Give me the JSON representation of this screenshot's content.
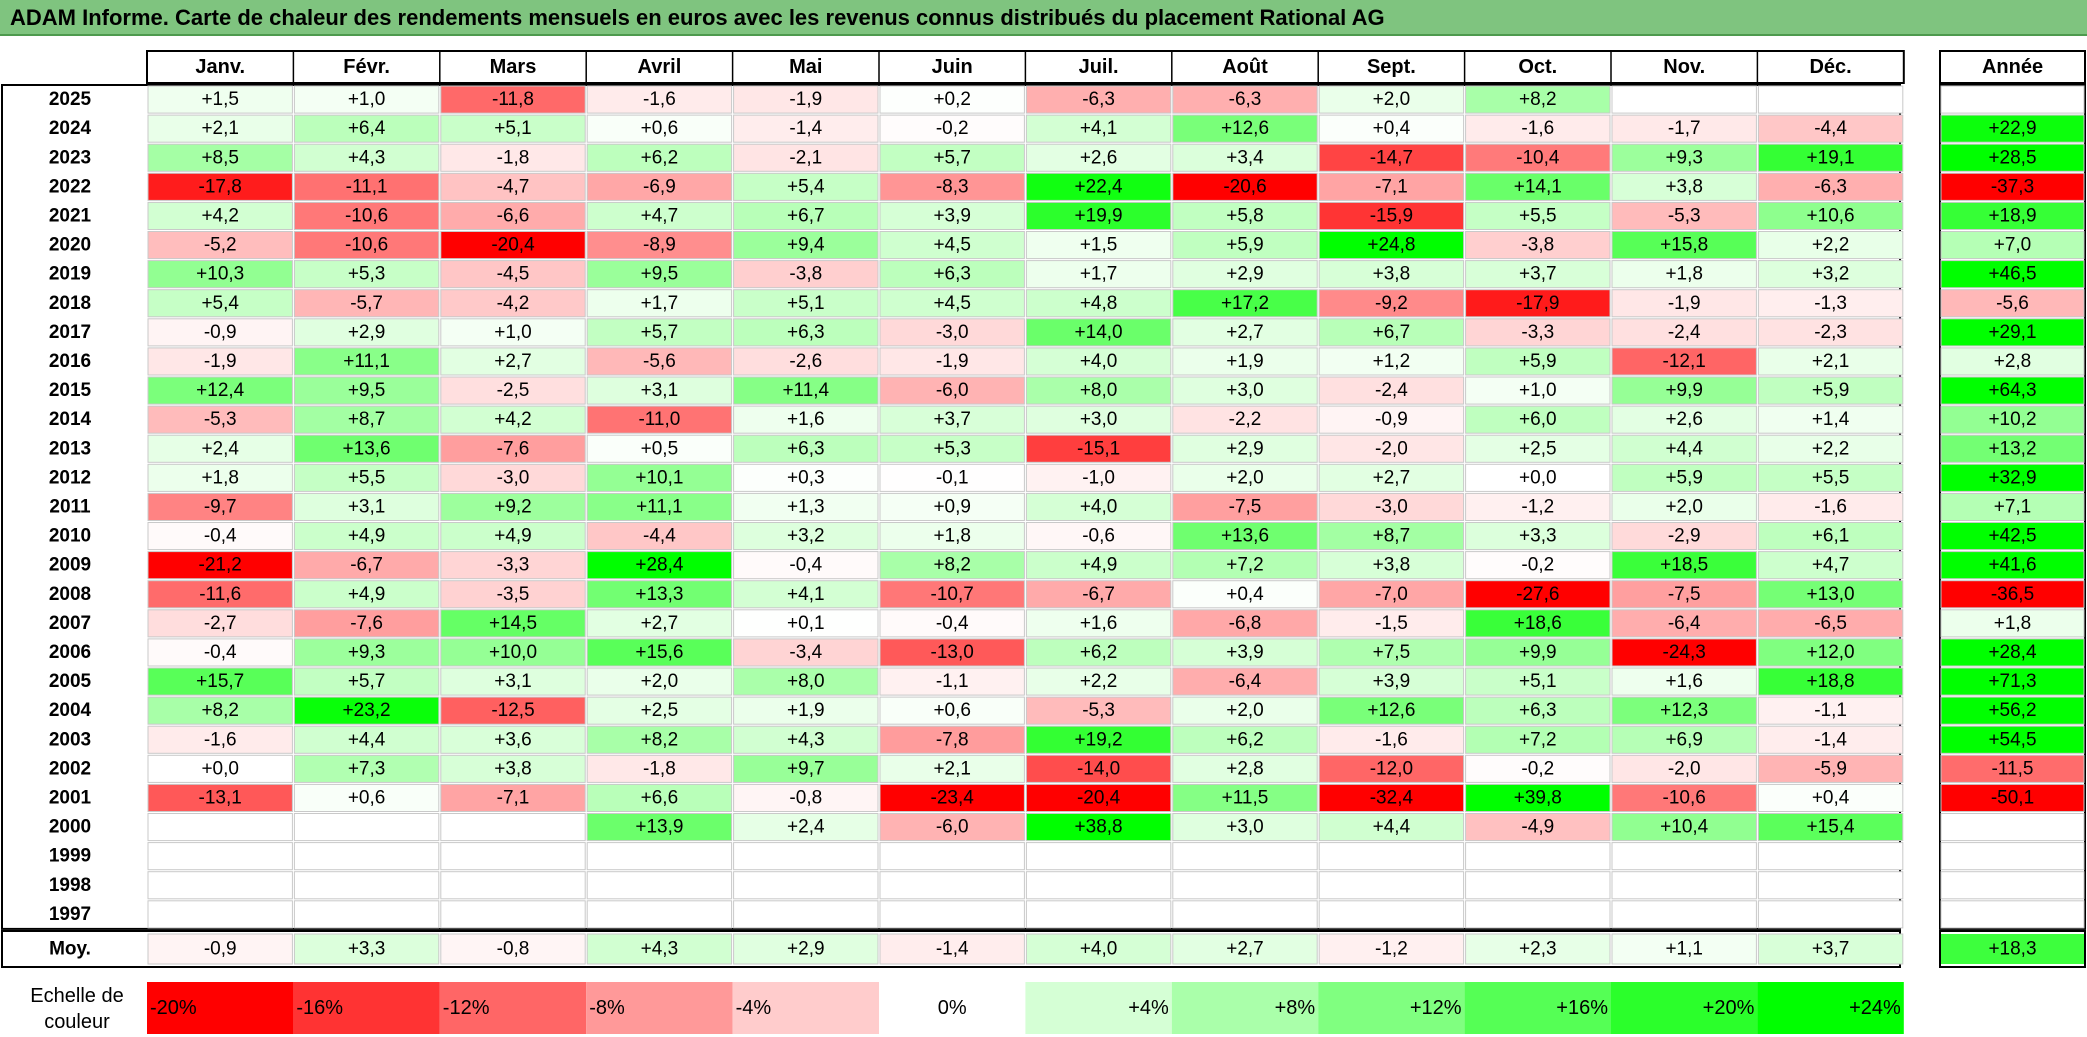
{
  "title": "ADAM Informe. Carte de chaleur des rendements mensuels en euros avec les revenus connus distribués du placement Rational AG",
  "months": [
    "Janv.",
    "Févr.",
    "Mars",
    "Avril",
    "Mai",
    "Juin",
    "Juil.",
    "Août",
    "Sept.",
    "Oct.",
    "Nov.",
    "Déc."
  ],
  "year_header": "Année",
  "average_label": "Moy.",
  "scale_label": [
    "Echelle de",
    "couleur"
  ],
  "colors": {
    "title_bar": "#7fc47f",
    "negative_max": "#ff0000",
    "positive_max": "#00ff00",
    "neutral": "#ffffff"
  },
  "chart_data": {
    "type": "heatmap",
    "unit": "%",
    "rows": [
      {
        "year": "2025",
        "values": [
          "+1,5",
          "+1,0",
          "-11,8",
          "-1,6",
          "-1,9",
          "+0,2",
          "-6,3",
          "-6,3",
          "+2,0",
          "+8,2",
          "",
          ""
        ],
        "annual": ""
      },
      {
        "year": "2024",
        "values": [
          "+2,1",
          "+6,4",
          "+5,1",
          "+0,6",
          "-1,4",
          "-0,2",
          "+4,1",
          "+12,6",
          "+0,4",
          "-1,6",
          "-1,7",
          "-4,4"
        ],
        "annual": "+22,9"
      },
      {
        "year": "2023",
        "values": [
          "+8,5",
          "+4,3",
          "-1,8",
          "+6,2",
          "-2,1",
          "+5,7",
          "+2,6",
          "+3,4",
          "-14,7",
          "-10,4",
          "+9,3",
          "+19,1"
        ],
        "annual": "+28,5"
      },
      {
        "year": "2022",
        "values": [
          "-17,8",
          "-11,1",
          "-4,7",
          "-6,9",
          "+5,4",
          "-8,3",
          "+22,4",
          "-20,6",
          "-7,1",
          "+14,1",
          "+3,8",
          "-6,3"
        ],
        "annual": "-37,3"
      },
      {
        "year": "2021",
        "values": [
          "+4,2",
          "-10,6",
          "-6,6",
          "+4,7",
          "+6,7",
          "+3,9",
          "+19,9",
          "+5,8",
          "-15,9",
          "+5,5",
          "-5,3",
          "+10,6"
        ],
        "annual": "+18,9"
      },
      {
        "year": "2020",
        "values": [
          "-5,2",
          "-10,6",
          "-20,4",
          "-8,9",
          "+9,4",
          "+4,5",
          "+1,5",
          "+5,9",
          "+24,8",
          "-3,8",
          "+15,8",
          "+2,2"
        ],
        "annual": "+7,0"
      },
      {
        "year": "2019",
        "values": [
          "+10,3",
          "+5,3",
          "-4,5",
          "+9,5",
          "-3,8",
          "+6,3",
          "+1,7",
          "+2,9",
          "+3,8",
          "+3,7",
          "+1,8",
          "+3,2"
        ],
        "annual": "+46,5"
      },
      {
        "year": "2018",
        "values": [
          "+5,4",
          "-5,7",
          "-4,2",
          "+1,7",
          "+5,1",
          "+4,5",
          "+4,8",
          "+17,2",
          "-9,2",
          "-17,9",
          "-1,9",
          "-1,3"
        ],
        "annual": "-5,6"
      },
      {
        "year": "2017",
        "values": [
          "-0,9",
          "+2,9",
          "+1,0",
          "+5,7",
          "+6,3",
          "-3,0",
          "+14,0",
          "+2,7",
          "+6,7",
          "-3,3",
          "-2,4",
          "-2,3"
        ],
        "annual": "+29,1"
      },
      {
        "year": "2016",
        "values": [
          "-1,9",
          "+11,1",
          "+2,7",
          "-5,6",
          "-2,6",
          "-1,9",
          "+4,0",
          "+1,9",
          "+1,2",
          "+5,9",
          "-12,1",
          "+2,1"
        ],
        "annual": "+2,8"
      },
      {
        "year": "2015",
        "values": [
          "+12,4",
          "+9,5",
          "-2,5",
          "+3,1",
          "+11,4",
          "-6,0",
          "+8,0",
          "+3,0",
          "-2,4",
          "+1,0",
          "+9,9",
          "+5,9"
        ],
        "annual": "+64,3"
      },
      {
        "year": "2014",
        "values": [
          "-5,3",
          "+8,7",
          "+4,2",
          "-11,0",
          "+1,6",
          "+3,7",
          "+3,0",
          "-2,2",
          "-0,9",
          "+6,0",
          "+2,6",
          "+1,4"
        ],
        "annual": "+10,2"
      },
      {
        "year": "2013",
        "values": [
          "+2,4",
          "+13,6",
          "-7,6",
          "+0,5",
          "+6,3",
          "+5,3",
          "-15,1",
          "+2,9",
          "-2,0",
          "+2,5",
          "+4,4",
          "+2,2"
        ],
        "annual": "+13,2"
      },
      {
        "year": "2012",
        "values": [
          "+1,8",
          "+5,5",
          "-3,0",
          "+10,1",
          "+0,3",
          "-0,1",
          "-1,0",
          "+2,0",
          "+2,7",
          "+0,0",
          "+5,9",
          "+5,5"
        ],
        "annual": "+32,9"
      },
      {
        "year": "2011",
        "values": [
          "-9,7",
          "+3,1",
          "+9,2",
          "+11,1",
          "+1,3",
          "+0,9",
          "+4,0",
          "-7,5",
          "-3,0",
          "-1,2",
          "+2,0",
          "-1,6"
        ],
        "annual": "+7,1"
      },
      {
        "year": "2010",
        "values": [
          "-0,4",
          "+4,9",
          "+4,9",
          "-4,4",
          "+3,2",
          "+1,8",
          "-0,6",
          "+13,6",
          "+8,7",
          "+3,3",
          "-2,9",
          "+6,1"
        ],
        "annual": "+42,5"
      },
      {
        "year": "2009",
        "values": [
          "-21,2",
          "-6,7",
          "-3,3",
          "+28,4",
          "-0,4",
          "+8,2",
          "+4,9",
          "+7,2",
          "+3,8",
          "-0,2",
          "+18,5",
          "+4,7"
        ],
        "annual": "+41,6"
      },
      {
        "year": "2008",
        "values": [
          "-11,6",
          "+4,9",
          "-3,5",
          "+13,3",
          "+4,1",
          "-10,7",
          "-6,7",
          "+0,4",
          "-7,0",
          "-27,6",
          "-7,5",
          "+13,0"
        ],
        "annual": "-36,5"
      },
      {
        "year": "2007",
        "values": [
          "-2,7",
          "-7,6",
          "+14,5",
          "+2,7",
          "+0,1",
          "-0,4",
          "+1,6",
          "-6,8",
          "-1,5",
          "+18,6",
          "-6,4",
          "-6,5"
        ],
        "annual": "+1,8"
      },
      {
        "year": "2006",
        "values": [
          "-0,4",
          "+9,3",
          "+10,0",
          "+15,6",
          "-3,4",
          "-13,0",
          "+6,2",
          "+3,9",
          "+7,5",
          "+9,9",
          "-24,3",
          "+12,0"
        ],
        "annual": "+28,4"
      },
      {
        "year": "2005",
        "values": [
          "+15,7",
          "+5,7",
          "+3,1",
          "+2,0",
          "+8,0",
          "-1,1",
          "+2,2",
          "-6,4",
          "+3,9",
          "+5,1",
          "+1,6",
          "+18,8"
        ],
        "annual": "+71,3"
      },
      {
        "year": "2004",
        "values": [
          "+8,2",
          "+23,2",
          "-12,5",
          "+2,5",
          "+1,9",
          "+0,6",
          "-5,3",
          "+2,0",
          "+12,6",
          "+6,3",
          "+12,3",
          "-1,1"
        ],
        "annual": "+56,2"
      },
      {
        "year": "2003",
        "values": [
          "-1,6",
          "+4,4",
          "+3,6",
          "+8,2",
          "+4,3",
          "-7,8",
          "+19,2",
          "+6,2",
          "-1,6",
          "+7,2",
          "+6,9",
          "-1,4"
        ],
        "annual": "+54,5"
      },
      {
        "year": "2002",
        "values": [
          "+0,0",
          "+7,3",
          "+3,8",
          "-1,8",
          "+9,7",
          "+2,1",
          "-14,0",
          "+2,8",
          "-12,0",
          "-0,2",
          "-2,0",
          "-5,9"
        ],
        "annual": "-11,5"
      },
      {
        "year": "2001",
        "values": [
          "-13,1",
          "+0,6",
          "-7,1",
          "+6,6",
          "-0,8",
          "-23,4",
          "-20,4",
          "+11,5",
          "-32,4",
          "+39,8",
          "-10,6",
          "+0,4"
        ],
        "annual": "-50,1"
      },
      {
        "year": "2000",
        "values": [
          "",
          "",
          "",
          "+13,9",
          "+2,4",
          "-6,0",
          "+38,8",
          "+3,0",
          "+4,4",
          "-4,9",
          "+10,4",
          "+15,4"
        ],
        "annual": ""
      },
      {
        "year": "1999",
        "values": [
          "",
          "",
          "",
          "",
          "",
          "",
          "",
          "",
          "",
          "",
          "",
          ""
        ],
        "annual": ""
      },
      {
        "year": "1998",
        "values": [
          "",
          "",
          "",
          "",
          "",
          "",
          "",
          "",
          "",
          "",
          "",
          ""
        ],
        "annual": ""
      },
      {
        "year": "1997",
        "values": [
          "",
          "",
          "",
          "",
          "",
          "",
          "",
          "",
          "",
          "",
          "",
          ""
        ],
        "annual": ""
      }
    ],
    "average": {
      "values": [
        "-0,9",
        "+3,3",
        "-0,8",
        "+4,3",
        "+2,9",
        "-1,4",
        "+4,0",
        "+2,7",
        "-1,2",
        "+2,3",
        "+1,1",
        "+3,7"
      ],
      "annual": "+18,3"
    },
    "scale": [
      "-20%",
      "-16%",
      "-12%",
      "-8%",
      "-4%",
      "0%",
      "+4%",
      "+8%",
      "+12%",
      "+16%",
      "+20%",
      "+24%"
    ]
  }
}
